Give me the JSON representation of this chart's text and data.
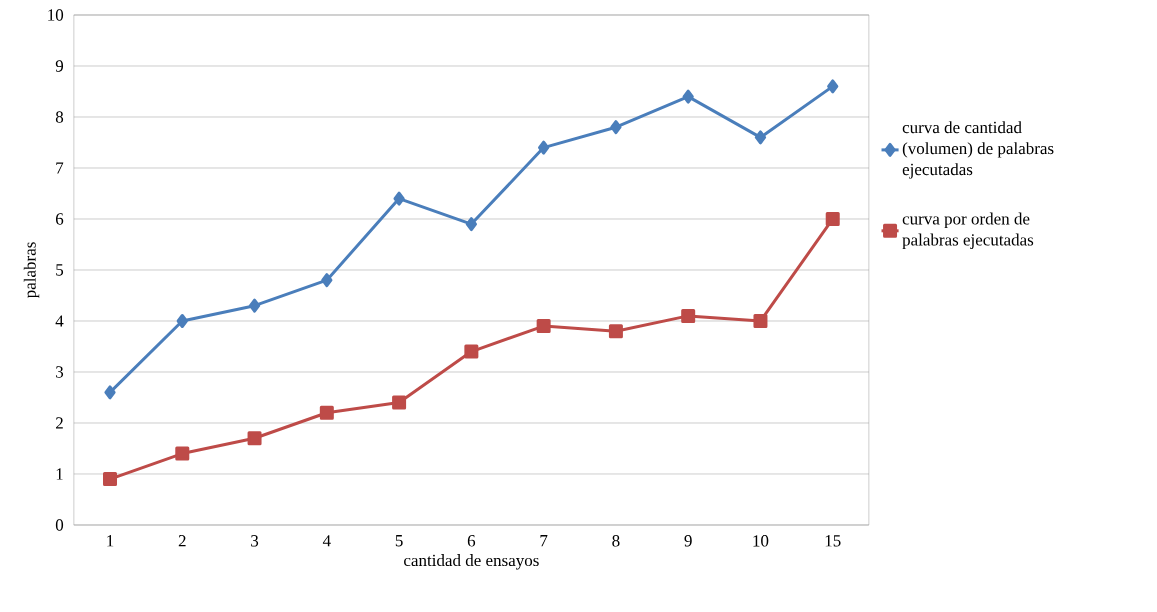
{
  "chart_data": {
    "type": "line",
    "xlabel": "cantidad de ensayos",
    "ylabel": "palabras",
    "categories": [
      "1",
      "2",
      "3",
      "4",
      "5",
      "6",
      "7",
      "8",
      "9",
      "10",
      "15"
    ],
    "series": [
      {
        "name": "curva de cantidad (volumen) de palabras ejecutadas",
        "color": "#4a7ebb",
        "marker": "diamond",
        "values": [
          2.6,
          4.0,
          4.3,
          4.8,
          6.4,
          5.9,
          7.4,
          7.8,
          8.4,
          7.6,
          8.6
        ]
      },
      {
        "name": "curva por orden de palabras ejecutadas",
        "color": "#be4b48",
        "marker": "square",
        "values": [
          0.9,
          1.4,
          1.7,
          2.2,
          2.4,
          3.4,
          3.9,
          3.8,
          4.1,
          4.0,
          6.0
        ]
      }
    ],
    "ylim": [
      0,
      10
    ],
    "yticks": [
      0,
      1,
      2,
      3,
      4,
      5,
      6,
      7,
      8,
      9,
      10
    ],
    "grid": "y",
    "legend": "right",
    "line_style": "solid"
  }
}
